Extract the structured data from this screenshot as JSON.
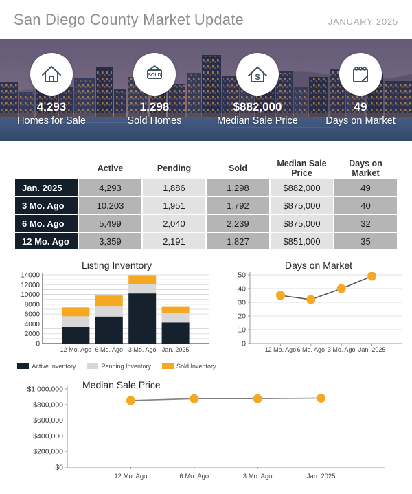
{
  "header": {
    "title": "San Diego County Market Update",
    "date": "JANUARY 2025"
  },
  "hero": {
    "stats": [
      {
        "icon": "house-icon",
        "value": "4,293",
        "label": "Homes for Sale"
      },
      {
        "icon": "sold-sign-icon",
        "value": "1,298",
        "label": "Sold Homes"
      },
      {
        "icon": "house-dollar-icon",
        "value": "$882,000",
        "label": "Median Sale Price"
      },
      {
        "icon": "calendar-icon",
        "value": "49",
        "label": "Days on Market"
      }
    ]
  },
  "table": {
    "columns": [
      "",
      "Active",
      "Pending",
      "Sold",
      "Median Sale Price",
      "Days on Market"
    ],
    "rows": [
      {
        "label": "Jan. 2025",
        "values": [
          "4,293",
          "1,886",
          "1,298",
          "$882,000",
          "49"
        ]
      },
      {
        "label": "3 Mo. Ago",
        "values": [
          "10,203",
          "1,951",
          "1,792",
          "$875,000",
          "40"
        ]
      },
      {
        "label": "6 Mo. Ago",
        "values": [
          "5,499",
          "2,040",
          "2,239",
          "$875,000",
          "32"
        ]
      },
      {
        "label": "12 Mo. Ago",
        "values": [
          "3,359",
          "2,191",
          "1,827",
          "$851,000",
          "35"
        ]
      }
    ]
  },
  "chart_data": [
    {
      "type": "bar",
      "stacked": true,
      "title": "Listing Inventory",
      "categories": [
        "12 Mo. Ago",
        "6 Mo. Ago",
        "3 Mo. Ago",
        "Jan. 2025"
      ],
      "series": [
        {
          "name": "Active Inventory",
          "color": "#15222e",
          "values": [
            3359,
            5499,
            10203,
            4293
          ]
        },
        {
          "name": "Pending Inventory",
          "color": "#d8d8d8",
          "values": [
            2191,
            2040,
            1951,
            1886
          ]
        },
        {
          "name": "Sold Inventory",
          "color": "#f7a823",
          "values": [
            1827,
            2239,
            1792,
            1298
          ]
        }
      ],
      "ylim": [
        0,
        14000
      ],
      "ytick_step": 2000,
      "grid_step": 1000,
      "legend_position": "bottom"
    },
    {
      "type": "line",
      "title": "Days on Market",
      "categories": [
        "12 Mo. Ago",
        "6 Mo. Ago",
        "3 Mo. Ago",
        "Jan. 2025"
      ],
      "values": [
        35,
        32,
        40,
        49
      ],
      "ylim": [
        0,
        50
      ],
      "ytick_step": 10,
      "grid": true,
      "marker_color": "#f7a823",
      "line_color": "#58595b"
    },
    {
      "type": "line",
      "title": "Median Sale Price",
      "categories": [
        "12 Mo. Ago",
        "6 Mo. Ago",
        "3 Mo. Ago",
        "Jan. 2025"
      ],
      "values": [
        851000,
        875000,
        875000,
        882000
      ],
      "ylim": [
        0,
        1000000
      ],
      "ytick_labels": [
        "$0",
        "$200,000",
        "$400,000",
        "$600,000",
        "$800,000",
        "$1,000,000"
      ],
      "grid": false,
      "marker_color": "#f7a823",
      "line_color": "#808285"
    }
  ],
  "colors": {
    "navy": "#15222e",
    "amber": "#f7a823",
    "gray_medium": "#b5b5b5",
    "gray_light": "#e2e2e2",
    "icon_stroke": "#3f5260"
  }
}
